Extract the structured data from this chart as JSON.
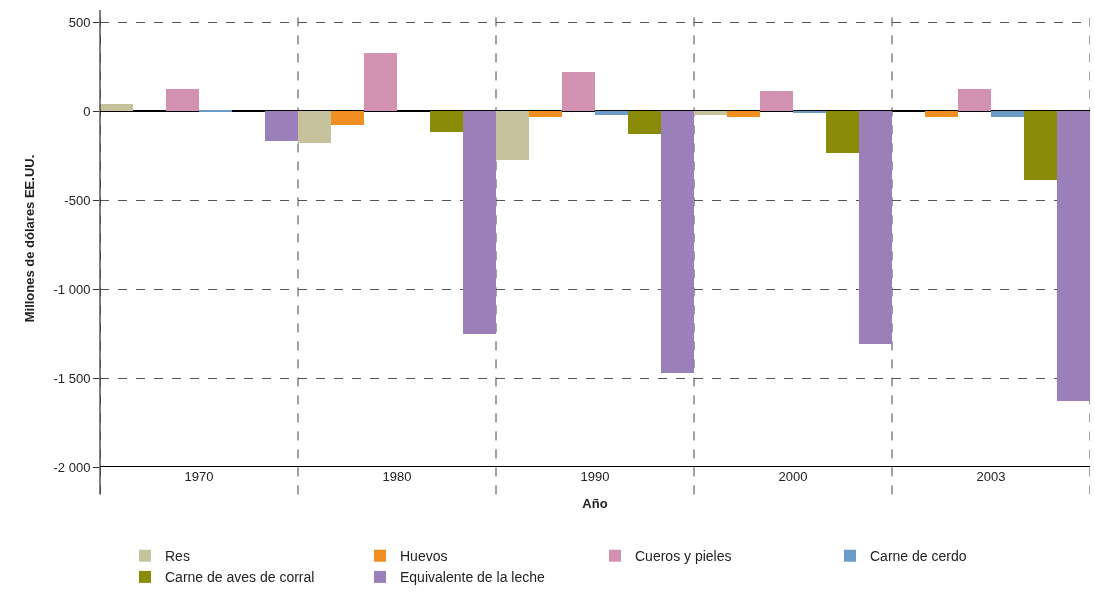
{
  "chart_data": {
    "type": "bar",
    "xlabel": "Año",
    "ylabel": "Millones de dólares EE.UU.",
    "categories": [
      "1970",
      "1980",
      "1990",
      "2000",
      "2003"
    ],
    "series": [
      {
        "name": "Res",
        "color": "#c5c29c",
        "values": [
          40,
          -180,
          -275,
          -20,
          null
        ]
      },
      {
        "name": "Huevos",
        "color": "#f18e21",
        "values": [
          null,
          -75,
          -30,
          -30,
          -30
        ]
      },
      {
        "name": "Cueros y pieles",
        "color": "#d391b1",
        "values": [
          125,
          330,
          220,
          115,
          125
        ]
      },
      {
        "name": "Carne de cerdo",
        "color": "#6a9bc9",
        "values": [
          10,
          null,
          -20,
          -10,
          -30
        ]
      },
      {
        "name": "Carne de aves de corral",
        "color": "#8a8c09",
        "values": [
          null,
          -115,
          -130,
          -235,
          -385
        ]
      },
      {
        "name": "Equivalente de la leche",
        "color": "#9b7fb9",
        "values": [
          -165,
          -1250,
          -1470,
          -1310,
          -1630
        ]
      }
    ],
    "ylim": [
      -2000,
      570
    ],
    "yticks": [
      {
        "value": -2000,
        "label": "-2 000"
      },
      {
        "value": -1500,
        "label": "-1 500"
      },
      {
        "value": -1000,
        "label": "-1 000"
      },
      -500,
      0,
      500
    ],
    "grid": true,
    "legend": "bottom"
  }
}
